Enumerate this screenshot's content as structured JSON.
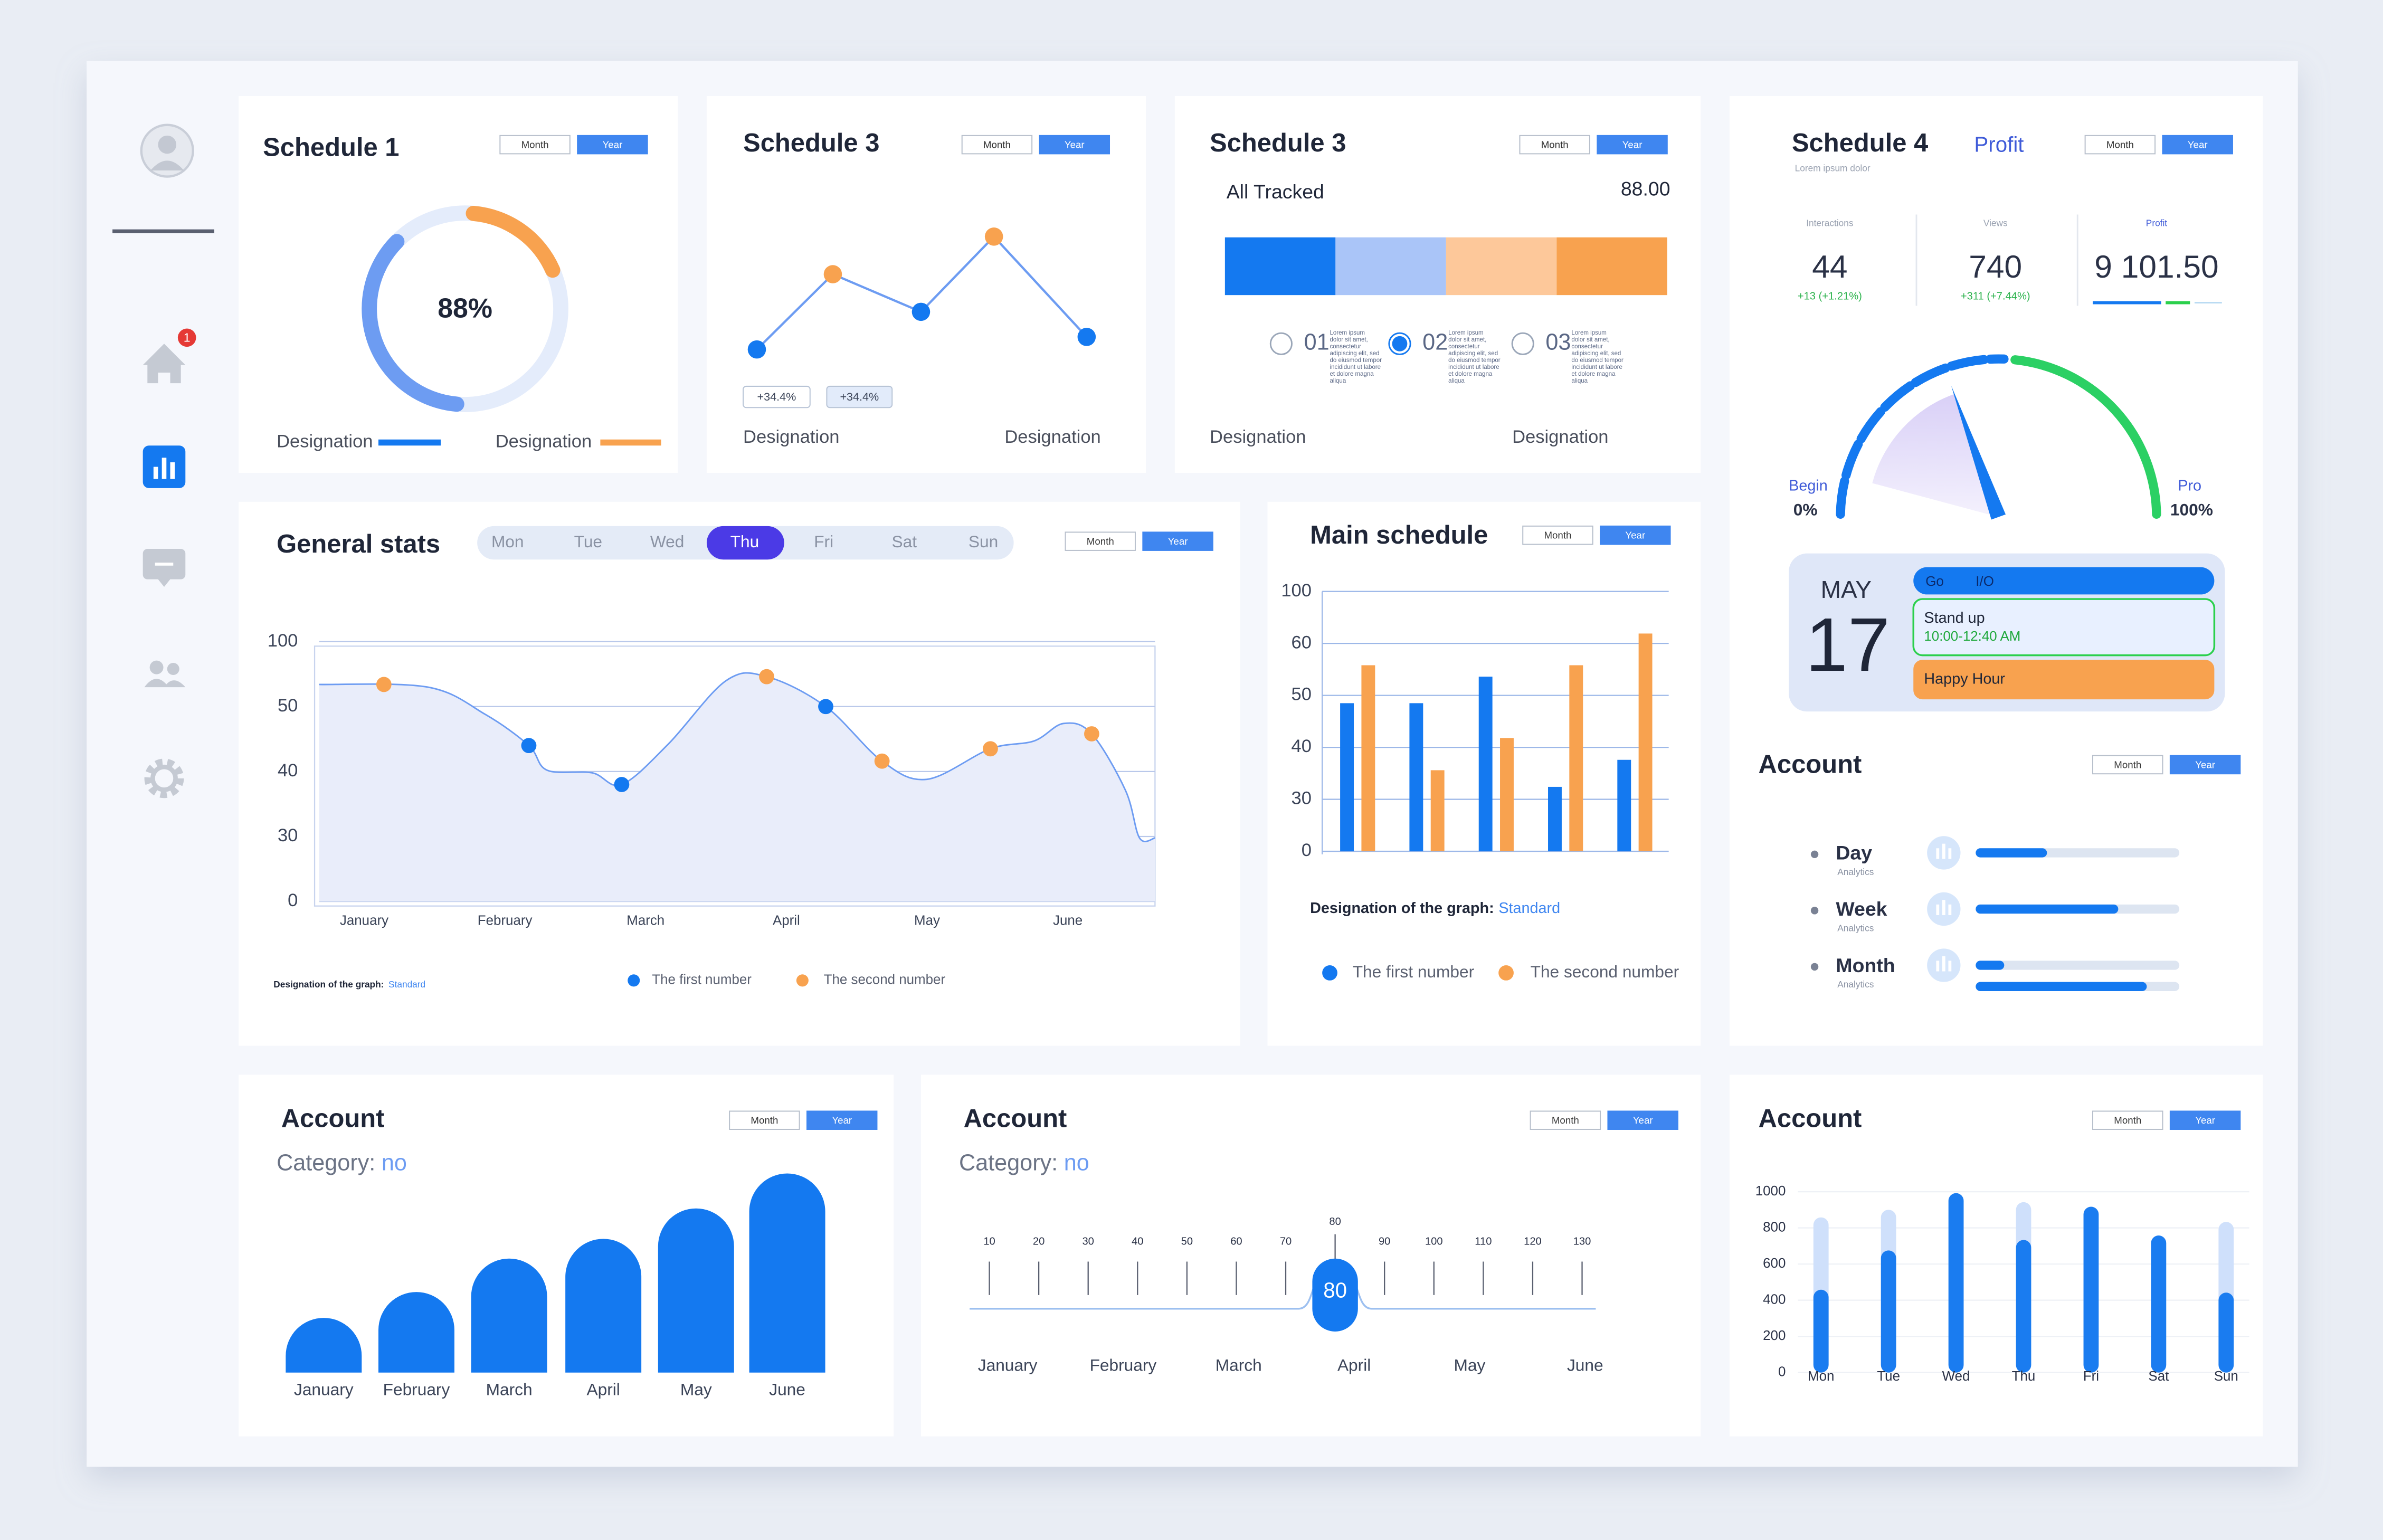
{
  "sidebar": {
    "badge": "1"
  },
  "schedule1": {
    "title": "Schedule 1",
    "toggle": [
      "Month",
      "Year"
    ],
    "center_label": "88%",
    "segments": [
      {
        "color": "#6d9cf2",
        "value": 36
      },
      {
        "color": "#f8a24f",
        "value": 17
      }
    ],
    "legend": [
      {
        "name": "Designation",
        "color": "#1479f0"
      },
      {
        "name": "Designation",
        "color": "#f8a24f"
      }
    ]
  },
  "schedule3_line": {
    "title": "Schedule 3",
    "toggle": [
      "Month",
      "Year"
    ],
    "values": [
      25,
      55,
      40,
      70,
      30
    ],
    "ylim": [
      0,
      100
    ],
    "line_color": "#6d9cf2",
    "point_colors": [
      "#1479f0",
      "#f8a24f",
      "#1479f0",
      "#f8a24f",
      "#1479f0"
    ],
    "badges": [
      "+34.4%",
      "+34.4%"
    ],
    "labels": [
      "Designation",
      "Designation"
    ]
  },
  "schedule3_tracked": {
    "title": "Schedule 3",
    "toggle": [
      "Month",
      "Year"
    ],
    "label": "All Tracked",
    "total": "88.00",
    "xlim": [
      0,
      100
    ],
    "segments": [
      {
        "color": "#1479f0",
        "value": 25
      },
      {
        "color": "#aac5f8",
        "value": 25
      },
      {
        "color": "#fdc89a",
        "value": 25
      },
      {
        "color": "#f8a24f",
        "value": 25
      }
    ],
    "items": [
      {
        "num": "01",
        "text": [
          "Lorem ipsum",
          "dolor sit amet,",
          "consectetur",
          "adipiscing elit, sed",
          "do eiusmod tempor",
          "incididunt ut labore",
          "et dolore magna",
          "aliqua"
        ]
      },
      {
        "num": "02",
        "text": [
          "Lorem ipsum",
          "dolor sit amet,",
          "consectetur",
          "adipiscing elit, sed",
          "do eiusmod tempor",
          "incididunt ut labore",
          "et dolore magna",
          "aliqua"
        ]
      },
      {
        "num": "03",
        "text": [
          "Lorem ipsum",
          "dolor sit amet,",
          "consectetur",
          "adipiscing elit, sed",
          "do eiusmod tempor",
          "incididunt ut labore",
          "et dolore magna",
          "aliqua"
        ]
      }
    ],
    "selected": 1,
    "labels": [
      "Designation",
      "Designation"
    ]
  },
  "schedule4": {
    "title": "Schedule 4",
    "subtitle": "Lorem ipsum dolor",
    "tab": "Profit",
    "toggle": [
      "Month",
      "Year"
    ],
    "stats": [
      {
        "label": "Interactions",
        "value": "44",
        "change": "+13 (+1.21%)"
      },
      {
        "label": "Views",
        "value": "740",
        "change": "+311 (+7.44%)"
      },
      {
        "label": "Profit",
        "value": "9 101.50"
      }
    ],
    "gauge": {
      "value": 39,
      "lim": [
        {
          "value": 0,
          "label": "0%"
        },
        {
          "value": 100,
          "label": "100%"
        }
      ],
      "start_label": "Begin",
      "end_label": "Pro"
    },
    "date": {
      "month": "MAY",
      "day": "17"
    },
    "events": [
      {
        "title": "Go",
        "extra": "I/O"
      },
      {
        "title": "Stand up",
        "time": "10:00-12:40 AM"
      },
      {
        "title": "Happy Hour"
      }
    ]
  },
  "account_progress": {
    "title": "Account",
    "toggle": [
      "Month",
      "Year"
    ],
    "lim": [
      0,
      100
    ],
    "rows": [
      {
        "name": "Day",
        "sub": "Analytics",
        "values": [
          35
        ]
      },
      {
        "name": "Week",
        "sub": "Analytics",
        "values": [
          70
        ]
      },
      {
        "name": "Month",
        "sub": "Analytics",
        "values": [
          14,
          84
        ]
      }
    ]
  },
  "general_stats": {
    "title": "General stats",
    "toggle": [
      "Month",
      "Year"
    ],
    "days": [
      "Mon",
      "Tue",
      "Wed",
      "Thu",
      "Fri",
      "Sat",
      "Sun"
    ],
    "selected": 3,
    "chart": {
      "type": "line",
      "xlim": [
        -0.32,
        5.62
      ],
      "xticks": [
        {
          "value": 0,
          "label": "January"
        },
        {
          "value": 1,
          "label": "February"
        },
        {
          "value": 2,
          "label": "March"
        },
        {
          "value": 3,
          "label": "April"
        },
        {
          "value": 4,
          "label": "May"
        },
        {
          "value": 5,
          "label": "June"
        }
      ],
      "yticks": [
        0,
        30,
        40,
        50,
        100
      ],
      "area": {
        "color": "#6d9cf2",
        "x": [
          -0.32,
          0.45,
          0.86,
          1.17,
          1.3,
          1.62,
          1.83,
          2.16,
          2.57,
          2.86,
          3.28,
          3.68,
          4.0,
          4.45,
          4.76,
          4.97,
          5.17,
          5.41,
          5.51,
          5.62
        ],
        "values": [
          67,
          65,
          48.8,
          44,
          40.2,
          39.8,
          38,
          44.2,
          69.8,
          73,
          50,
          41.6,
          38.8,
          43.5,
          44.7,
          47.4,
          45.8,
          37.1,
          29.3,
          29.3
        ]
      },
      "series": [
        {
          "name": "The first number",
          "color": "#1479f0",
          "x": [
            1.17,
            1.83,
            3.28
          ],
          "values": [
            44,
            38,
            50
          ]
        },
        {
          "name": "The second number",
          "color": "#f8a24f",
          "x": [
            0.14,
            2.86,
            3.68,
            4.45,
            5.17
          ],
          "values": [
            67,
            73,
            41.6,
            43.5,
            45.8
          ]
        }
      ]
    },
    "note": "Designation of the graph:",
    "note_link": "Standard"
  },
  "main_schedule": {
    "title": "Main schedule",
    "toggle": [
      "Month",
      "Year"
    ],
    "chart": {
      "type": "bar",
      "categories": [
        null,
        null,
        null,
        null,
        null
      ],
      "yticks": [
        0,
        30,
        40,
        50,
        60,
        100
      ],
      "series": [
        {
          "name": "The first number",
          "color": "#1479f0",
          "values": [
            48.5,
            48.5,
            53.6,
            32.4,
            37.6
          ]
        },
        {
          "name": "The second number",
          "color": "#f8a24f",
          "values": [
            55.8,
            35.6,
            41.8,
            55.8,
            67.6
          ]
        }
      ]
    },
    "note": "Designation of the graph:",
    "note_link": "Standard"
  },
  "account_bars": {
    "title": "Account",
    "toggle": [
      "Month",
      "Year"
    ],
    "category_label": "Category:",
    "category": "no",
    "chart": {
      "type": "bar",
      "categories": [
        "January",
        "February",
        "March",
        "April",
        "May",
        "June"
      ],
      "values": [
        36,
        53,
        75,
        88,
        108,
        131
      ],
      "ylim": [
        0,
        140
      ],
      "color": "#1479f0"
    }
  },
  "account_slider": {
    "title": "Account",
    "toggle": [
      "Month",
      "Year"
    ],
    "category_label": "Category:",
    "category": "no",
    "ticks": [
      10,
      20,
      30,
      40,
      50,
      60,
      70,
      80,
      90,
      100,
      110,
      120,
      130
    ],
    "value": 80,
    "months": [
      "January",
      "February",
      "March",
      "April",
      "May",
      "June"
    ]
  },
  "account_week": {
    "title": "Account",
    "toggle": [
      "Month",
      "Year"
    ],
    "chart": {
      "type": "bar",
      "categories": [
        "Mon",
        "Tue",
        "Wed",
        "Thu",
        "Fri",
        "Sat",
        "Sun"
      ],
      "ylim": [
        0,
        1000
      ],
      "yticks": [
        0,
        200,
        400,
        600,
        800,
        1000
      ],
      "series": [
        {
          "color": "#cfe0fb",
          "values": [
            858,
            900,
            null,
            942,
            null,
            null,
            833
          ]
        },
        {
          "color": "#1a7cf0",
          "values": [
            458,
            675,
            992,
            733,
            917,
            758,
            442
          ]
        }
      ]
    }
  }
}
